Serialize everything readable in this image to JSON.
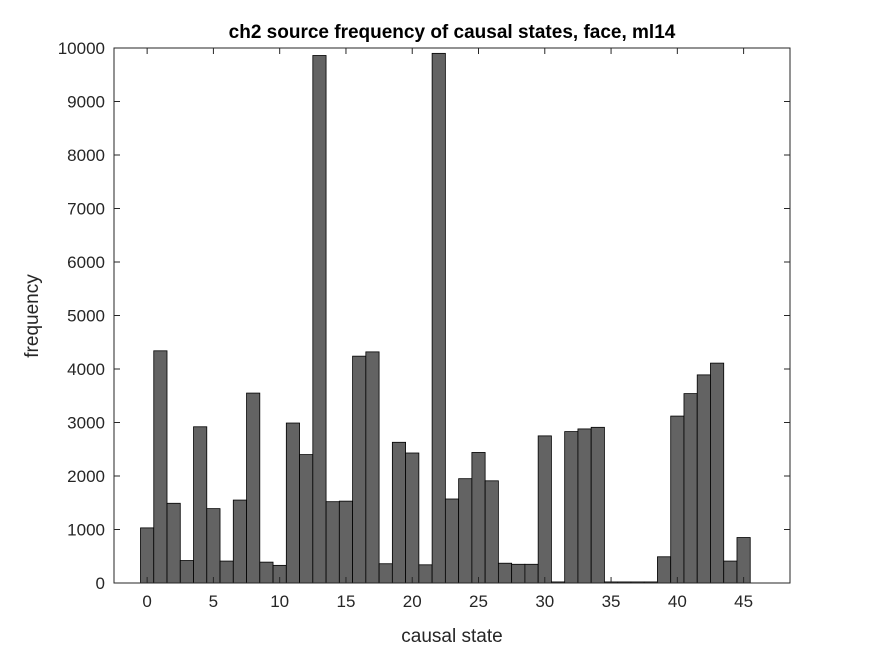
{
  "chart_data": {
    "type": "bar",
    "title": "ch2 source frequency of causal states, face, ml14",
    "xlabel": "causal state",
    "ylabel": "frequency",
    "xlim": [
      -2.5,
      48.5
    ],
    "ylim": [
      0,
      10000
    ],
    "xticks": [
      0,
      5,
      10,
      15,
      20,
      25,
      30,
      35,
      40,
      45
    ],
    "yticks": [
      0,
      1000,
      2000,
      3000,
      4000,
      5000,
      6000,
      7000,
      8000,
      9000,
      10000
    ],
    "grid": false,
    "bar_color": "#636363",
    "bar_edge_color": "#000000",
    "x": [
      0,
      1,
      2,
      3,
      4,
      5,
      6,
      7,
      8,
      9,
      10,
      11,
      12,
      13,
      14,
      15,
      16,
      17,
      18,
      19,
      20,
      21,
      22,
      23,
      24,
      25,
      26,
      27,
      28,
      29,
      30,
      31,
      32,
      33,
      34,
      35,
      36,
      37,
      38,
      39,
      40,
      41,
      42,
      43,
      44,
      45,
      46
    ],
    "values": [
      1030,
      4340,
      1490,
      420,
      2920,
      1390,
      410,
      1550,
      3550,
      390,
      330,
      2990,
      2400,
      9860,
      1520,
      1530,
      4240,
      4320,
      360,
      2630,
      2430,
      340,
      9900,
      1570,
      1950,
      2440,
      1910,
      370,
      350,
      350,
      2750,
      20,
      2830,
      2880,
      2910,
      20,
      20,
      20,
      20,
      490,
      3120,
      3540,
      3890,
      4110,
      410,
      850,
      0
    ]
  }
}
